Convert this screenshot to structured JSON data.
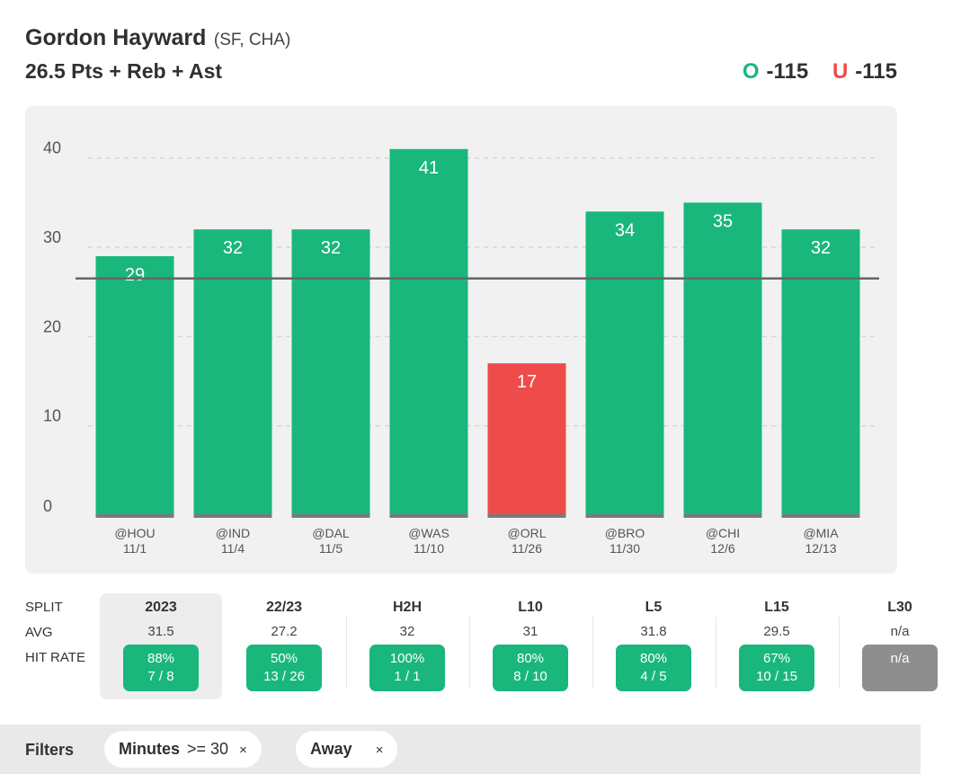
{
  "header": {
    "player_name": "Gordon Hayward",
    "player_meta": "(SF, CHA)",
    "prop": "26.5 Pts + Reb + Ast",
    "over_letter": "O",
    "over_odds": "-115",
    "under_letter": "U",
    "under_odds": "-115"
  },
  "colors": {
    "over": "#19b77c",
    "under": "#ee4b4b",
    "panel": "#f1f1f1",
    "line": "#666666"
  },
  "chart_data": {
    "type": "bar",
    "categories": [
      {
        "opp": "@HOU",
        "date": "11/1"
      },
      {
        "opp": "@IND",
        "date": "11/4"
      },
      {
        "opp": "@DAL",
        "date": "11/5"
      },
      {
        "opp": "@WAS",
        "date": "11/10"
      },
      {
        "opp": "@ORL",
        "date": "11/26"
      },
      {
        "opp": "@BRO",
        "date": "11/30"
      },
      {
        "opp": "@CHI",
        "date": "12/6"
      },
      {
        "opp": "@MIA",
        "date": "12/13"
      }
    ],
    "values": [
      29,
      32,
      32,
      41,
      17,
      34,
      35,
      32
    ],
    "reference_line": 26.5,
    "yticks": [
      0,
      10,
      20,
      30,
      40
    ],
    "ylim": [
      0,
      44
    ],
    "grid": "dashed horizontal",
    "over_color": "#19b77c",
    "under_color": "#ee4b4b"
  },
  "splits": {
    "row_labels": [
      "SPLIT",
      "AVG",
      "HIT RATE"
    ],
    "columns": [
      {
        "name": "2023",
        "avg": "31.5",
        "pct": "88%",
        "count": "7 / 8",
        "selected": true
      },
      {
        "name": "22/23",
        "avg": "27.2",
        "pct": "50%",
        "count": "13 / 26"
      },
      {
        "name": "H2H",
        "avg": "32",
        "pct": "100%",
        "count": "1 / 1"
      },
      {
        "name": "L10",
        "avg": "31",
        "pct": "80%",
        "count": "8 / 10"
      },
      {
        "name": "L5",
        "avg": "31.8",
        "pct": "80%",
        "count": "4 / 5"
      },
      {
        "name": "L15",
        "avg": "29.5",
        "pct": "67%",
        "count": "10 / 15"
      },
      {
        "name": "L30",
        "avg": "n/a",
        "pct": "n/a",
        "count": "",
        "na": true
      }
    ]
  },
  "filters": {
    "label": "Filters",
    "chips": [
      {
        "name": "Minutes",
        "condition": ">= 30",
        "remove": "×"
      },
      {
        "name": "Away",
        "condition": "",
        "remove": "×"
      }
    ]
  }
}
